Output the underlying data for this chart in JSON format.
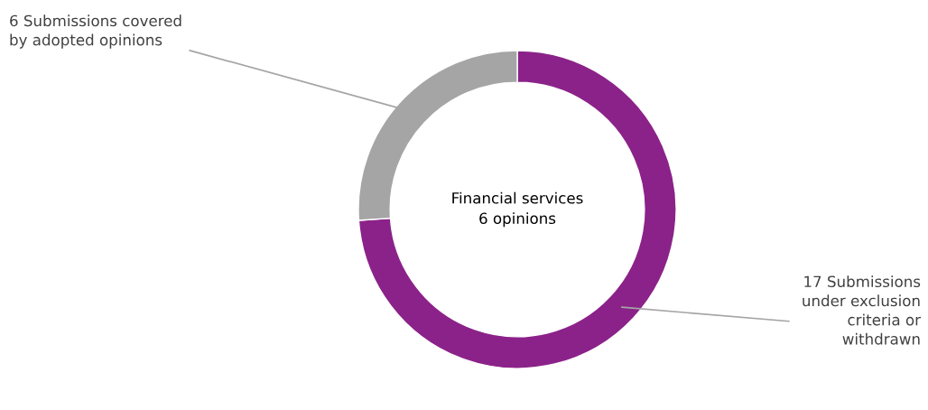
{
  "chart_data": {
    "type": "donut",
    "categories": [
      "17 Submissions\nunder exclusion\ncriteria or\nwithdrawn",
      "6 Submissions covered\nby adopted opinions"
    ],
    "values": [
      17,
      6
    ],
    "colors": [
      "#8b2289",
      "#a5a5a5"
    ],
    "annotations": [
      "Financial services\n6 opinions"
    ],
    "legend": false
  }
}
